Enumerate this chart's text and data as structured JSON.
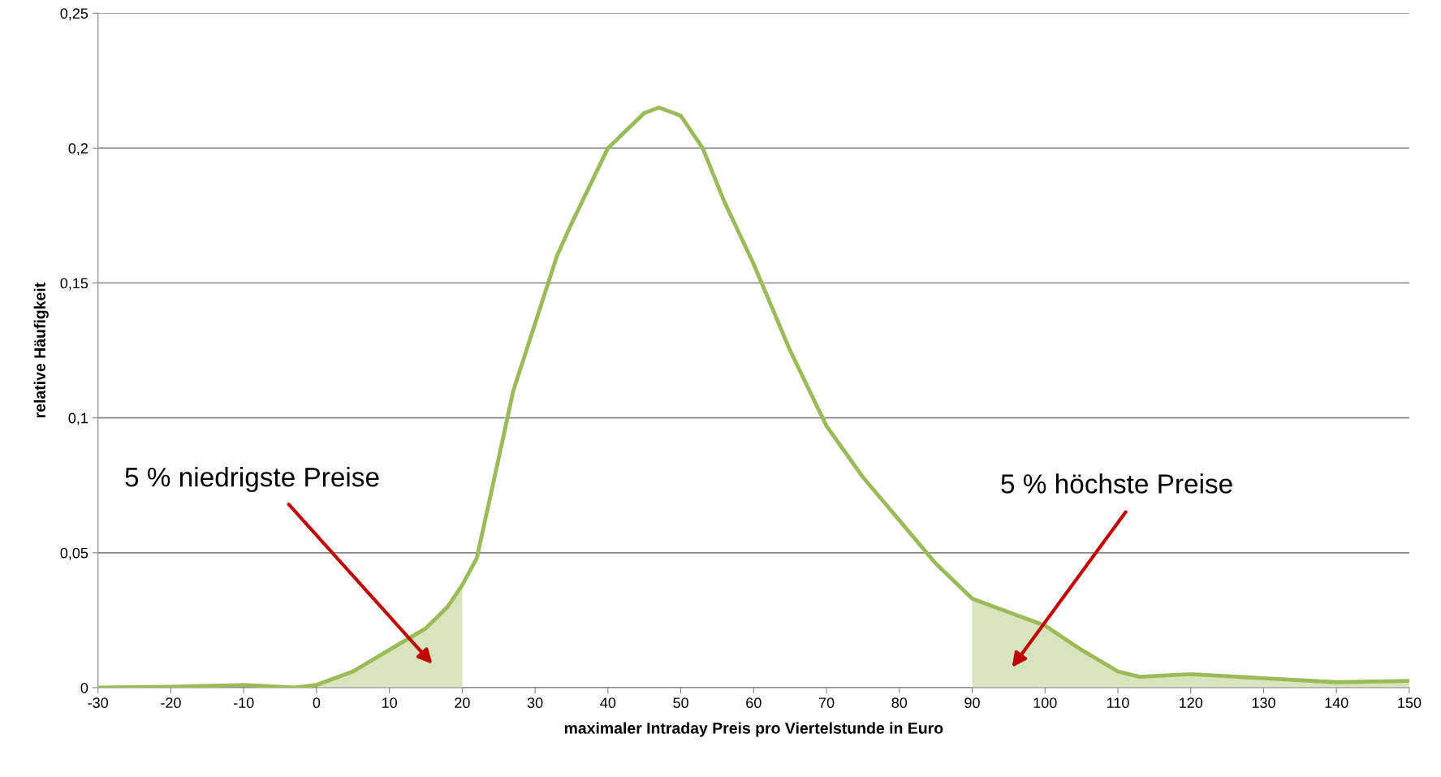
{
  "chart_data": {
    "type": "line",
    "xlabel": "maximaler Intraday Preis pro Viertelstunde in Euro",
    "ylabel": "relative Häufigkeit",
    "xlim": [
      -30,
      150
    ],
    "xticks": [
      -30,
      -20,
      -10,
      0,
      10,
      20,
      30,
      40,
      50,
      60,
      70,
      80,
      90,
      100,
      110,
      120,
      130,
      140,
      150
    ],
    "ylim": [
      0,
      0.25
    ],
    "yticks": [
      0,
      {
        "value": 0.05,
        "label": "0,05"
      },
      {
        "value": 0.1,
        "label": "0,1"
      },
      {
        "value": 0.15,
        "label": "0,15"
      },
      {
        "value": 0.2,
        "label": "0,2"
      },
      {
        "value": 0.25,
        "label": "0,25"
      }
    ],
    "grid": "y",
    "legend": false,
    "series": [
      {
        "type": "area",
        "color": "#d7e4bd",
        "x": [
          0,
          5,
          10,
          15,
          18,
          20
        ],
        "values": [
          0.001,
          0.006,
          0.014,
          0.022,
          0.03,
          0.038
        ]
      },
      {
        "type": "area",
        "color": "#d7e4bd",
        "x": [
          90,
          95,
          100,
          105,
          110,
          113,
          120,
          130,
          140,
          150
        ],
        "values": [
          0.033,
          0.028,
          0.023,
          0.014,
          0.006,
          0.004,
          0.005,
          0.0035,
          0.002,
          0.0025
        ]
      },
      {
        "color": "#9bbb59",
        "x": [
          -30,
          -20,
          -10,
          -3,
          0,
          5,
          10,
          15,
          18,
          20,
          22,
          25,
          27,
          30,
          33,
          35,
          40,
          45,
          47,
          50,
          53,
          56,
          60,
          65,
          70,
          75,
          80,
          85,
          90,
          95,
          100,
          105,
          110,
          113,
          120,
          130,
          140,
          150
        ],
        "values": [
          0,
          0.0003,
          0.001,
          0,
          0.001,
          0.006,
          0.014,
          0.022,
          0.03,
          0.038,
          0.048,
          0.085,
          0.11,
          0.135,
          0.16,
          0.172,
          0.2,
          0.213,
          0.215,
          0.212,
          0.2,
          0.18,
          0.157,
          0.125,
          0.097,
          0.078,
          0.062,
          0.046,
          0.033,
          0.028,
          0.023,
          0.014,
          0.006,
          0.004,
          0.005,
          0.0035,
          0.002,
          0.0025
        ]
      }
    ],
    "annotations": [
      "5 % niedrigste Preise",
      "5 % höchste Preise"
    ]
  }
}
